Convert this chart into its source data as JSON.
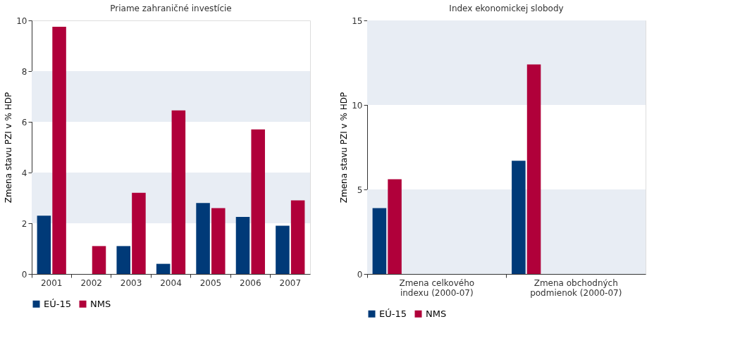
{
  "chart_data": [
    {
      "type": "bar",
      "title": "Priame zahraničné investície",
      "ylabel": "Zmena stavu PZI v % HDP",
      "categories": [
        "2001",
        "2002",
        "2003",
        "2004",
        "2005",
        "2006",
        "2007"
      ],
      "series": [
        {
          "name": "EÚ-15",
          "color": "#003a78",
          "values": [
            2.3,
            0,
            1.1,
            0.4,
            2.8,
            2.25,
            1.9
          ]
        },
        {
          "name": "NMS",
          "color": "#b0003a",
          "values": [
            9.75,
            1.1,
            3.2,
            6.45,
            2.6,
            5.7,
            2.9
          ]
        }
      ],
      "ylim": [
        0,
        10
      ],
      "yticks": [
        0,
        2,
        4,
        6,
        8,
        10
      ],
      "grid": false,
      "legend": "bottom",
      "bands": [
        {
          "axis": "y",
          "from": 2,
          "to": 4,
          "color": "#e8edf4"
        },
        {
          "axis": "y",
          "from": 6,
          "to": 8,
          "color": "#e8edf4"
        }
      ]
    },
    {
      "type": "bar",
      "title": "Index ekonomickej slobody",
      "ylabel": "Zmena stavu PZI v % HDP",
      "categories": [
        "Zmena celkového indexu (2000-07)",
        "Zmena obchodných podmienok (2000-07)"
      ],
      "series": [
        {
          "name": "EÚ-15",
          "color": "#003a78",
          "values": [
            3.9,
            6.7
          ]
        },
        {
          "name": "NMS",
          "color": "#b0003a",
          "values": [
            5.6,
            12.4
          ]
        }
      ],
      "ylim": [
        0,
        15
      ],
      "yticks": [
        0,
        5,
        10,
        15
      ],
      "grid": false,
      "legend": "bottom",
      "bands": [
        {
          "axis": "y",
          "from": 0,
          "to": 5,
          "color": "#e8edf4"
        },
        {
          "axis": "y",
          "from": 10,
          "to": 15,
          "color": "#e8edf4"
        }
      ]
    }
  ]
}
